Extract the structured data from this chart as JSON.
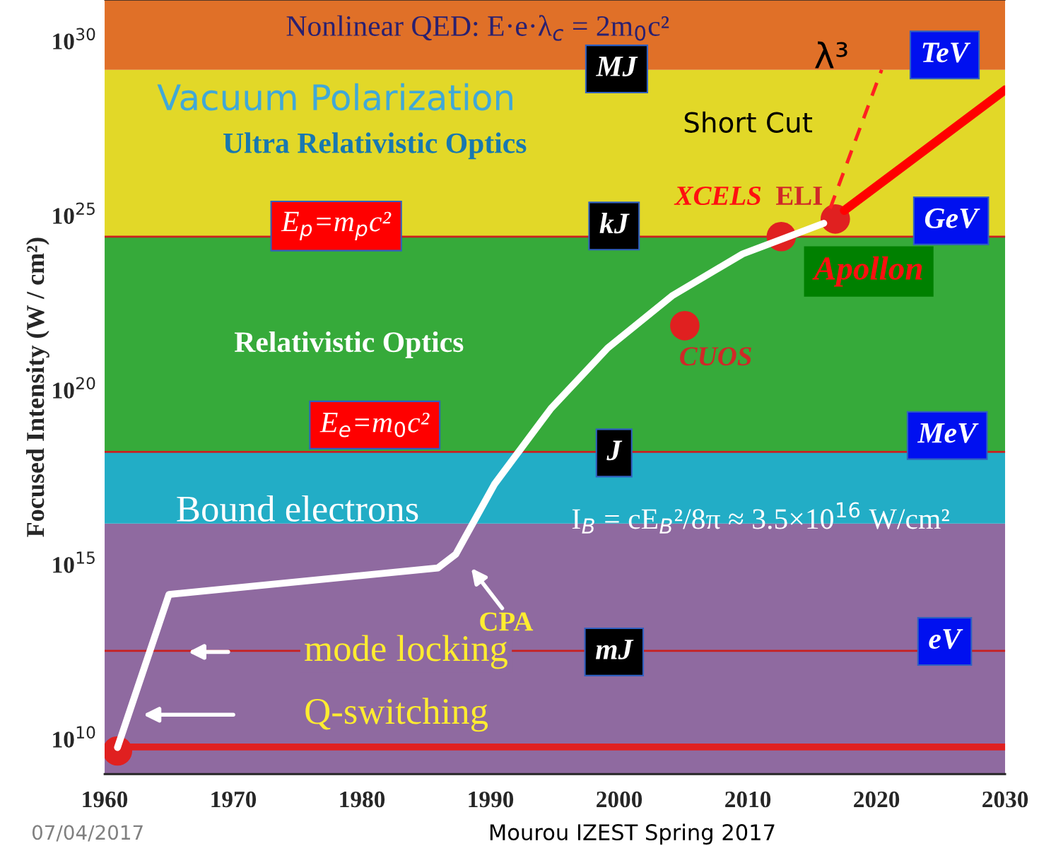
{
  "chart_data": {
    "type": "line",
    "ylabel": "Focused Intensity (W / cm²)",
    "xlim": [
      1960,
      2030
    ],
    "xticks": [
      1960,
      1970,
      1980,
      1990,
      2000,
      2010,
      2020,
      2030
    ],
    "ylim": [
      1000000000.0,
      1.5e+31
    ],
    "log": "y",
    "yticks": [
      {
        "value": 10000000000.0,
        "label": "10$^{10}$"
      },
      {
        "value": 1000000000000000.0,
        "label": "10$^{15}$"
      },
      {
        "value": 1e+20,
        "label": "10$^{20}$"
      },
      {
        "value": 1e+25,
        "label": "10$^{25}$"
      },
      {
        "value": 1e+30,
        "label": "10$^{30}$"
      }
    ],
    "tick_labels": "x_and_y",
    "grid": false,
    "bands": [
      {
        "axis": "y",
        "from": 1000000000.0,
        "to": 1.5e+16,
        "color": "#8f6aa0"
      },
      {
        "axis": "y",
        "from": 1.5e+16,
        "to": 1.7e+18,
        "color": "#22adc6"
      },
      {
        "axis": "y",
        "from": 1.7e+18,
        "to": 2.5e+24,
        "color": "#36aa3a"
      },
      {
        "axis": "y",
        "from": 2.5e+24,
        "to": 1.5e+29,
        "color": "#e2d828"
      },
      {
        "axis": "y",
        "from": 1.5e+29,
        "to": 1.5e+31,
        "color": "#e07028"
      }
    ],
    "ref_lines": [
      {
        "axis": "y",
        "value": 6000000000.0,
        "color": "#e02020",
        "line_style": "solid"
      },
      {
        "axis": "y",
        "value": 3400000000000.0,
        "color": "#c82020",
        "line_style": "solid"
      },
      {
        "axis": "y",
        "value": 1.7e+18,
        "color": "#c82020",
        "line_style": "solid"
      },
      {
        "axis": "y",
        "value": 2.5e+24,
        "color": "#c82020",
        "line_style": "solid"
      }
    ],
    "series": [
      {
        "type": "line",
        "color": "#ffffff",
        "line_style": "solid",
        "x": [
          1961.0,
          1965.0,
          1985.9,
          1987.3,
          1990.3,
          1994.7,
          1999.1,
          2004.1,
          2009.6,
          2015.9
        ],
        "values": [
          5800000000.0,
          140000000000000.0,
          800000000000000.0,
          2000000000000000.0,
          2e+17,
          3e+19,
          1.6e+21,
          5e+22,
          8e+23,
          6e+24
        ]
      },
      {
        "type": "line",
        "color": "#ff0000",
        "line_style": "solid",
        "x": [
          2017.5,
          2030.0
        ],
        "values": [
          1.4e+25,
          4e+28
        ]
      },
      {
        "type": "line",
        "color": "#ff2020",
        "line_style": "dashed",
        "x": [
          2016.4,
          2020.4
        ],
        "values": [
          1.6e+25,
          1.5e+29
        ]
      },
      {
        "type": "scatter",
        "color": "#e02020",
        "marker": "circle",
        "x": [
          1961.0,
          2005.1,
          2012.6,
          2016.8
        ],
        "values": [
          4600000000.0,
          7e+21,
          2.5e+24,
          8e+24
        ]
      }
    ],
    "annotations": [
      "Nonlinear QED: E·e·λ$_{c}$ = 2m$_{0}$c²",
      "Vacuum Polarization",
      "Ultra Relativistic Optics",
      "E$_{p}$=m$_{p}$c²",
      "Relativistic Optics",
      "E$_{e}$=m$_{0}$c²",
      "Bound electrons",
      "MJ",
      "kJ",
      "J",
      "mJ",
      "TeV",
      "GeV",
      "MeV",
      "eV",
      "λ³",
      "Short Cut",
      "XCELS",
      "ELI",
      "Apollon",
      "CUOS",
      "I$_{B}$ = cE$_{B}$²/8π ≈ 3.5×10$^{16}$ W/cm²",
      "CPA",
      "mode locking",
      "Q-switching",
      "07/04/2017",
      "Mourou IZEST Spring 2017"
    ]
  }
}
